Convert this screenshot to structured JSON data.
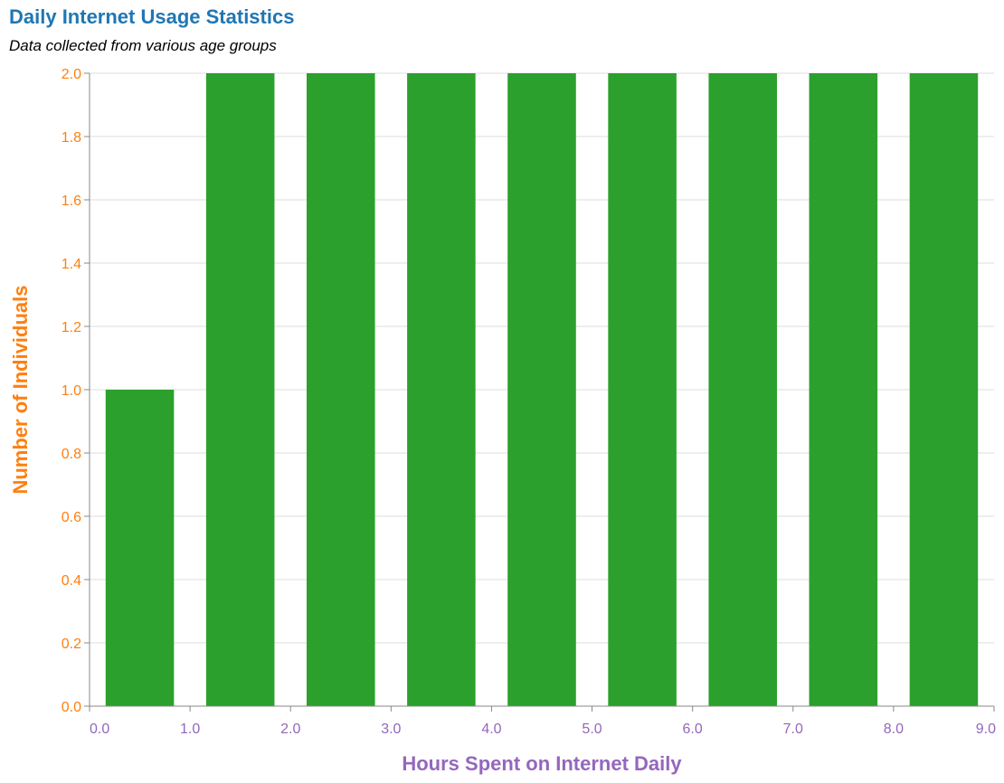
{
  "chart_data": {
    "type": "bar",
    "title": "Daily Internet Usage Statistics",
    "subtitle": "Data collected from various age groups",
    "xlabel": "Hours Spent on Internet Daily",
    "ylabel": "Number of Individuals",
    "bins": [
      {
        "start": 0.0,
        "end": 1.0,
        "value": 1
      },
      {
        "start": 1.0,
        "end": 2.0,
        "value": 2
      },
      {
        "start": 2.0,
        "end": 3.0,
        "value": 2
      },
      {
        "start": 3.0,
        "end": 4.0,
        "value": 2
      },
      {
        "start": 4.0,
        "end": 5.0,
        "value": 2
      },
      {
        "start": 5.0,
        "end": 6.0,
        "value": 2
      },
      {
        "start": 6.0,
        "end": 7.0,
        "value": 2
      },
      {
        "start": 7.0,
        "end": 8.0,
        "value": 2
      },
      {
        "start": 8.0,
        "end": 9.0,
        "value": 2
      }
    ],
    "xlim": [
      0,
      9
    ],
    "ylim": [
      0,
      2
    ],
    "x_ticks": [
      "0.0",
      "1.0",
      "2.0",
      "3.0",
      "4.0",
      "5.0",
      "6.0",
      "7.0",
      "8.0",
      "9.0"
    ],
    "y_ticks": [
      "0.0",
      "0.2",
      "0.4",
      "0.6",
      "0.8",
      "1.0",
      "1.2",
      "1.4",
      "1.6",
      "1.8",
      "2.0"
    ],
    "grid": true,
    "colors": {
      "bar": "#2ca02c",
      "title": "#1f77b4",
      "y_axis": "#ff7f0e",
      "x_axis": "#9467bd",
      "grid": "#dddddd",
      "axis_line": "#888888"
    }
  }
}
